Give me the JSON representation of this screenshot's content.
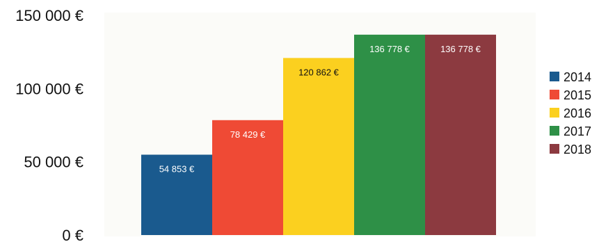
{
  "chart_data": {
    "type": "bar",
    "title": "",
    "xlabel": "",
    "ylabel": "",
    "ylim": [
      0,
      150000
    ],
    "y_ticks": [
      {
        "value": 0,
        "label": "0 €"
      },
      {
        "value": 50000,
        "label": "50 000 €"
      },
      {
        "value": 100000,
        "label": "100 000 €"
      },
      {
        "value": 150000,
        "label": "150 000 €"
      }
    ],
    "grid": false,
    "legend_position": "right",
    "series": [
      {
        "name": "2014",
        "value": 54853,
        "label": "54 853 €",
        "color": "#1a5a8e",
        "label_color": "#ffffff"
      },
      {
        "name": "2015",
        "value": 78429,
        "label": "78 429 €",
        "color": "#ef4a35",
        "label_color": "#ffffff"
      },
      {
        "name": "2016",
        "value": 120862,
        "label": "120 862 €",
        "color": "#fbd01f",
        "label_color": "#111111"
      },
      {
        "name": "2017",
        "value": 136778,
        "label": "136 778 €",
        "color": "#2e9047",
        "label_color": "#ffffff"
      },
      {
        "name": "2018",
        "value": 136778,
        "label": "136 778 €",
        "color": "#8c3a40",
        "label_color": "#ffffff"
      }
    ]
  }
}
